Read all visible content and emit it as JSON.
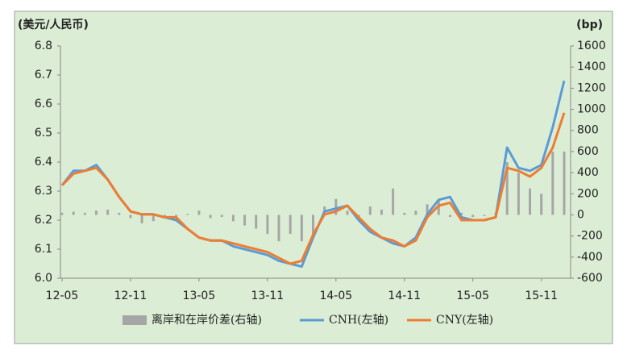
{
  "chart_data": {
    "type": "bar-line",
    "y_label": "(美元/人民币)",
    "y2_label": "(bp)",
    "categories": [
      "12-05",
      null,
      null,
      null,
      null,
      null,
      "12-11",
      null,
      null,
      null,
      null,
      null,
      "13-05",
      null,
      null,
      null,
      null,
      null,
      "13-11",
      null,
      null,
      null,
      null,
      null,
      "14-05",
      null,
      null,
      null,
      null,
      null,
      "14-11",
      null,
      null,
      null,
      null,
      null,
      "15-05",
      null,
      null,
      null,
      null,
      null,
      "15-11",
      null,
      null
    ],
    "series": [
      {
        "name": "离岸和在岸价差(右轴)",
        "color": "#a6a6a6",
        "axis": "y2",
        "kind": "bar",
        "values": [
          20,
          30,
          20,
          40,
          50,
          20,
          -30,
          -80,
          -60,
          -20,
          -20,
          10,
          40,
          -30,
          -20,
          -60,
          -100,
          -130,
          -180,
          -250,
          -180,
          -250,
          -200,
          80,
          150,
          40,
          -40,
          80,
          50,
          250,
          20,
          40,
          100,
          150,
          -20,
          20,
          -20,
          -10,
          20,
          500,
          400,
          250,
          200,
          600,
          600
        ]
      },
      {
        "name": "CNH(左轴)",
        "color": "#5b9bd5",
        "axis": "y",
        "kind": "line",
        "values": [
          6.32,
          6.37,
          6.37,
          6.39,
          6.34,
          6.28,
          6.23,
          6.22,
          6.22,
          6.21,
          6.2,
          6.17,
          6.14,
          6.13,
          6.13,
          6.11,
          6.1,
          6.09,
          6.08,
          6.06,
          6.05,
          6.04,
          6.14,
          6.23,
          6.24,
          6.25,
          6.2,
          6.16,
          6.14,
          6.12,
          6.11,
          6.14,
          6.22,
          6.27,
          6.28,
          6.21,
          6.2,
          6.2,
          6.21,
          6.45,
          6.38,
          6.37,
          6.39,
          6.52,
          6.68
        ]
      },
      {
        "name": "CNY(左轴)",
        "color": "#ed7d31",
        "axis": "y",
        "kind": "line",
        "values": [
          6.32,
          6.36,
          6.37,
          6.38,
          6.34,
          6.28,
          6.23,
          6.22,
          6.22,
          6.21,
          6.21,
          6.17,
          6.14,
          6.13,
          6.13,
          6.12,
          6.11,
          6.1,
          6.09,
          6.07,
          6.05,
          6.06,
          6.15,
          6.22,
          6.23,
          6.25,
          6.21,
          6.17,
          6.14,
          6.13,
          6.11,
          6.13,
          6.21,
          6.25,
          6.26,
          6.2,
          6.2,
          6.2,
          6.21,
          6.38,
          6.37,
          6.35,
          6.38,
          6.45,
          6.57
        ]
      }
    ],
    "ylim": [
      6.0,
      6.8
    ],
    "yticks": [
      {
        "value": 6,
        "label": "6.0"
      },
      6.1,
      6.2,
      6.3,
      6.4,
      6.5,
      6.6,
      6.7,
      6.8
    ],
    "y2lim": [
      -600,
      1600
    ],
    "y2ticks": [
      -600,
      -400,
      -200,
      0,
      200,
      400,
      600,
      800,
      1000,
      1200,
      1400,
      1600
    ],
    "background": "#dcedd5"
  }
}
